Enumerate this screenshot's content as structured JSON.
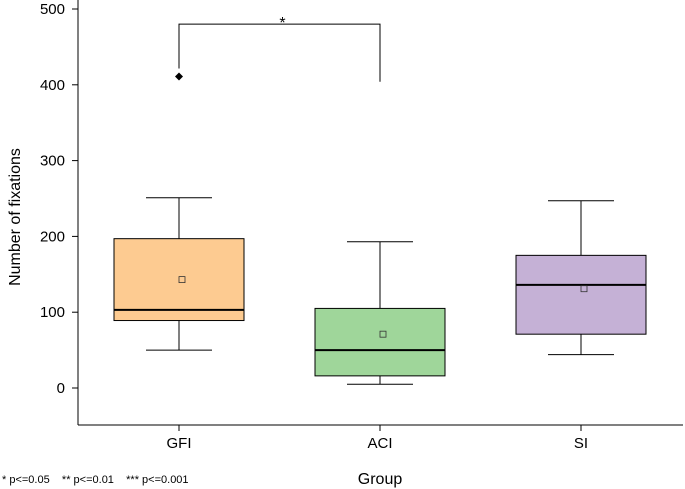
{
  "chart_data": {
    "type": "boxplot",
    "xlabel": "Group",
    "ylabel": "Number of fixations",
    "ylim": [
      0,
      500
    ],
    "yticks": [
      0,
      100,
      200,
      300,
      400,
      500
    ],
    "categories": [
      "GFI",
      "ACI",
      "SI"
    ],
    "boxes": [
      {
        "label": "GFI",
        "whisker_low": 50,
        "q1": 89,
        "median": 103,
        "q3": 197,
        "whisker_high": 251,
        "mean": 143,
        "outliers": [
          411
        ],
        "color": "#fdcb91"
      },
      {
        "label": "ACI",
        "whisker_low": 5,
        "q1": 16,
        "median": 50,
        "q3": 105,
        "whisker_high": 193,
        "mean": 71,
        "outliers": [],
        "color": "#9fd69a"
      },
      {
        "label": "SI",
        "whisker_low": 44,
        "q1": 71,
        "median": 136,
        "q3": 175,
        "whisker_high": 247,
        "mean": 131,
        "outliers": [],
        "color": "#c5b1d6"
      }
    ],
    "significance": [
      {
        "from": "GFI",
        "to": "ACI",
        "label": "*",
        "level": 480,
        "left_end": 411,
        "right_end": 404
      }
    ],
    "footnote": "* p<=0.05    ** p<=0.01    *** p<=0.001"
  }
}
